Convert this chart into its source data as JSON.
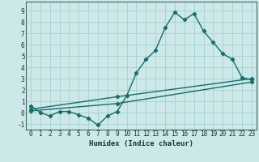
{
  "background_color": "#cce8e8",
  "grid_color": "#aad4d4",
  "line_color": "#1a6b6b",
  "marker_style": "D",
  "marker_size": 2.2,
  "line_width": 1.0,
  "xlabel": "Humidex (Indice chaleur)",
  "ylim": [
    -1.5,
    9.8
  ],
  "xlim": [
    -0.5,
    23.5
  ],
  "yticks": [
    -1,
    0,
    1,
    2,
    3,
    4,
    5,
    6,
    7,
    8,
    9
  ],
  "xticks": [
    0,
    1,
    2,
    3,
    4,
    5,
    6,
    7,
    8,
    9,
    10,
    11,
    12,
    13,
    14,
    15,
    16,
    17,
    18,
    19,
    20,
    21,
    22,
    23
  ],
  "line1_x": [
    0,
    1,
    2,
    3,
    4,
    5,
    6,
    7,
    8,
    9,
    10,
    11,
    12,
    13,
    14,
    15,
    16,
    17,
    18,
    19,
    20,
    21,
    22,
    23
  ],
  "line1_y": [
    0.6,
    0.0,
    -0.3,
    0.1,
    0.1,
    -0.2,
    -0.5,
    -1.1,
    -0.3,
    0.1,
    1.5,
    3.5,
    4.7,
    5.5,
    7.5,
    8.85,
    8.2,
    8.75,
    7.2,
    6.2,
    5.2,
    4.7,
    3.1,
    2.9
  ],
  "line2_x": [
    0,
    9,
    23
  ],
  "line2_y": [
    0.3,
    1.4,
    3.0
  ],
  "line3_x": [
    0,
    9,
    23
  ],
  "line3_y": [
    0.15,
    0.8,
    2.7
  ],
  "tick_fontsize": 5.5,
  "xlabel_fontsize": 6.5,
  "label_color": "#1a3030"
}
